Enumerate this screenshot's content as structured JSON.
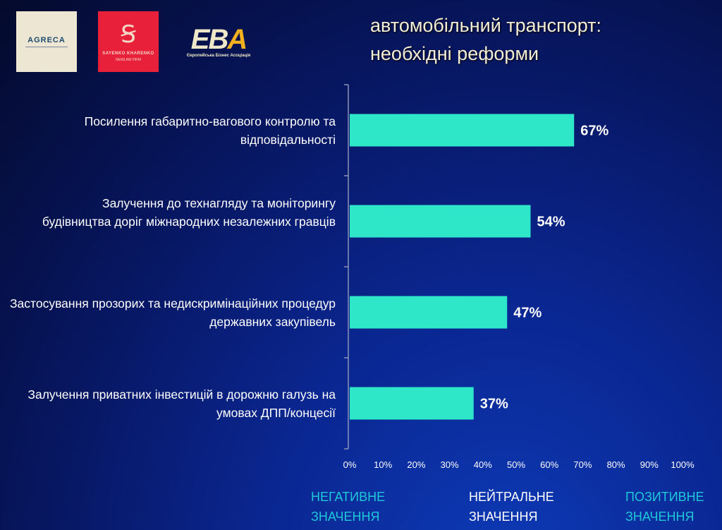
{
  "logos": {
    "agreca": "AGRECA",
    "sk": "SAYENKO KHARENKO",
    "sk_sub": "NEWLAW FIRM",
    "eba": "EBA",
    "eba_sub": "Європейська Бізнес Асоціація"
  },
  "title_lines": [
    "автомобільний транспорт:",
    "необхідні реформи"
  ],
  "chart_data": {
    "type": "bar",
    "orientation": "horizontal",
    "categories": [
      "Посилення габаритно-вагового контролю та відповідальності",
      "Залучення до технагляду та моніторингу будівництва доріг міжнародних незалежних гравців",
      "Застосування прозорих та недискримінаційних процедур державних закупівель",
      "Залучення приватних інвестицій в дорожню галузь на умовах ДПП/концесії"
    ],
    "values": [
      67,
      54,
      47,
      37
    ],
    "data_labels": [
      "67%",
      "54%",
      "47%",
      "37%"
    ],
    "xlim": [
      0,
      100
    ],
    "x_ticks": [
      "0%",
      "10%",
      "20%",
      "30%",
      "40%",
      "50%",
      "60%",
      "70%",
      "80%",
      "90%",
      "100%"
    ],
    "bar_color": "#2ee6c8"
  },
  "legend": {
    "negative": [
      "НЕГАТИВНЕ",
      "ЗНАЧЕННЯ"
    ],
    "neutral": [
      "НЕЙТРАЛЬНЕ",
      "ЗНАЧЕННЯ"
    ],
    "positive": [
      "ПОЗИТИВНЕ",
      "ЗНАЧЕННЯ"
    ]
  },
  "colors": {
    "legend_accent": "#1fc8d8",
    "neutral": "#ffffff"
  }
}
